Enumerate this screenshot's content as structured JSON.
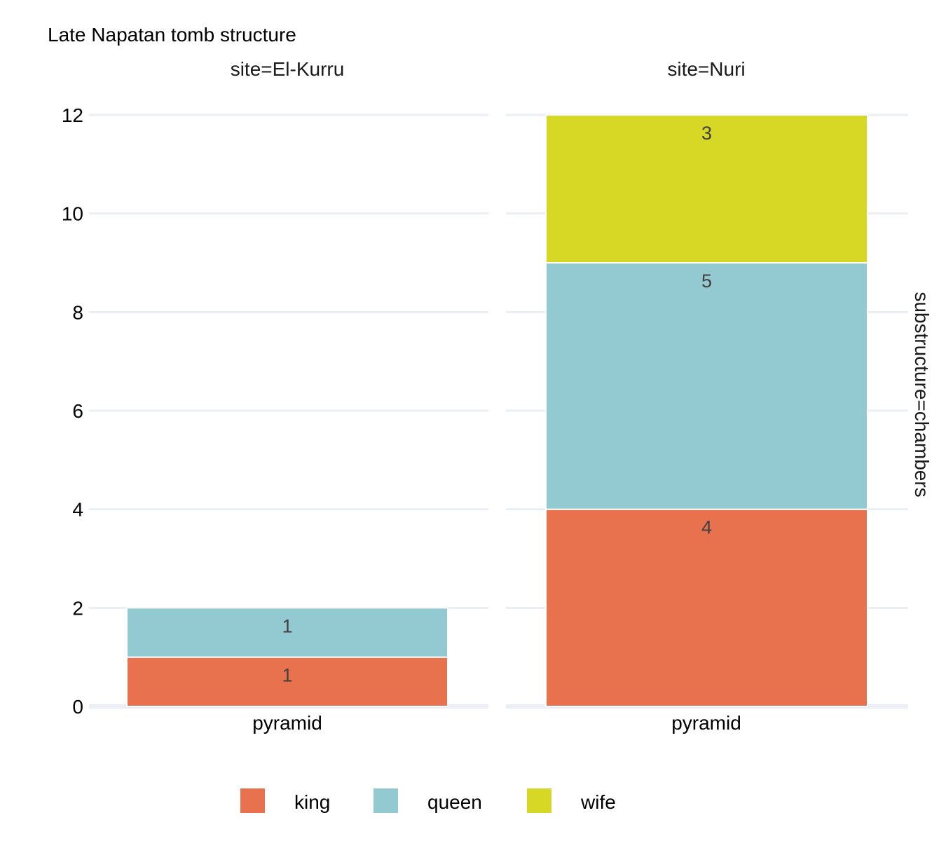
{
  "chart_data": {
    "type": "bar",
    "stacked": true,
    "title": "Late Napatan tomb structure",
    "row_strip": "substructure=chambers",
    "ylim": [
      0,
      12
    ],
    "yticks": [
      0,
      2,
      4,
      6,
      8,
      10,
      12
    ],
    "grid": true,
    "legend_position": "bottom",
    "legend": [
      {
        "name": "king",
        "color": "#e8714e"
      },
      {
        "name": "queen",
        "color": "#93c9d1"
      },
      {
        "name": "wife",
        "color": "#d7d725"
      }
    ],
    "panels": [
      {
        "strip": "site=El-Kurru",
        "categories": [
          "pyramid"
        ],
        "series": [
          {
            "name": "king",
            "values": [
              1
            ]
          },
          {
            "name": "queen",
            "values": [
              1
            ]
          }
        ]
      },
      {
        "strip": "site=Nuri",
        "categories": [
          "pyramid"
        ],
        "series": [
          {
            "name": "king",
            "values": [
              4
            ]
          },
          {
            "name": "queen",
            "values": [
              5
            ]
          },
          {
            "name": "wife",
            "values": [
              3
            ]
          }
        ]
      }
    ]
  }
}
